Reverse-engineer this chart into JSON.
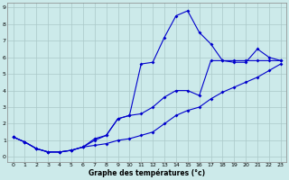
{
  "xlabel": "Graphe des températures (°c)",
  "bg_color": "#cceaea",
  "grid_color": "#aac8c8",
  "line_color": "#0000cc",
  "x_values": [
    0,
    1,
    2,
    3,
    4,
    5,
    6,
    7,
    8,
    9,
    10,
    11,
    12,
    13,
    14,
    15,
    16,
    17,
    18,
    19,
    20,
    21,
    22,
    23
  ],
  "ylim": [
    0,
    9
  ],
  "xlim": [
    0,
    23
  ],
  "line1": [
    1.2,
    0.9,
    0.5,
    0.3,
    0.3,
    0.4,
    0.6,
    1.0,
    1.3,
    2.3,
    2.5,
    5.6,
    5.7,
    7.2,
    8.5,
    8.8,
    7.5,
    6.8,
    5.8,
    5.7,
    5.7,
    6.5,
    6.0,
    5.8
  ],
  "line2": [
    1.2,
    0.9,
    0.5,
    0.3,
    0.3,
    0.4,
    0.6,
    1.1,
    1.3,
    2.3,
    2.5,
    2.6,
    3.0,
    3.6,
    4.0,
    4.0,
    3.7,
    5.8,
    5.8,
    5.8,
    5.8,
    5.8,
    5.8,
    5.8
  ],
  "line3": [
    1.2,
    0.9,
    0.5,
    0.3,
    0.3,
    0.4,
    0.6,
    0.7,
    0.8,
    1.0,
    1.1,
    1.3,
    1.5,
    2.0,
    2.5,
    2.8,
    3.0,
    3.5,
    3.9,
    4.2,
    4.5,
    4.8,
    5.2,
    5.6
  ]
}
